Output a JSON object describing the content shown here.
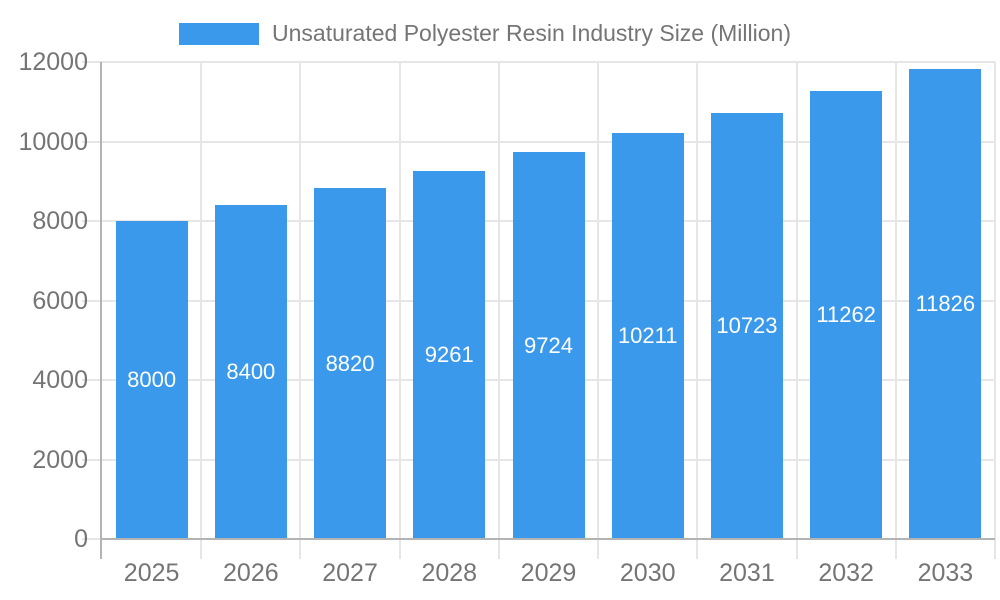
{
  "chart_data": {
    "type": "bar",
    "title": "Unsaturated Polyester Resin Industry Size (Million)",
    "categories": [
      "2025",
      "2026",
      "2027",
      "2028",
      "2029",
      "2030",
      "2031",
      "2032",
      "2033"
    ],
    "values": [
      8000,
      8400,
      8820,
      9261,
      9724,
      10211,
      10723,
      11262,
      11826
    ],
    "xlabel": "",
    "ylabel": "",
    "ylim": [
      0,
      12000
    ],
    "yticks": [
      0,
      2000,
      4000,
      6000,
      8000,
      10000,
      12000
    ],
    "grid": true,
    "legend_position": "top",
    "bar_color": "#3b99ec",
    "bar_label_color": "#ffffff",
    "axis_text_color": "#757575",
    "axis_line_color": "#b3b3b3",
    "grid_color": "#e6e6e6",
    "background": "#ffffff"
  }
}
